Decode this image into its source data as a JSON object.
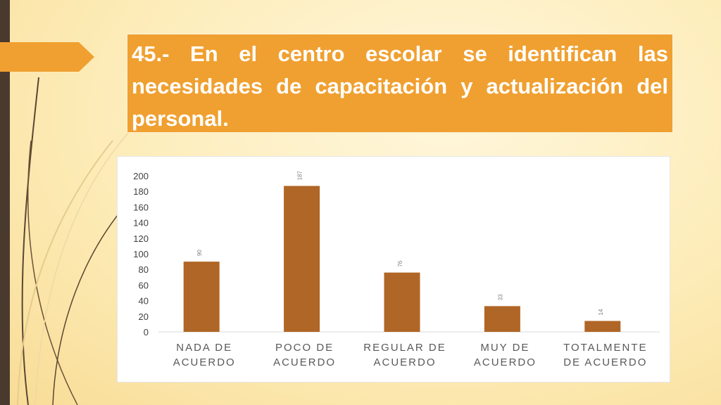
{
  "slide": {
    "title": "45.- En el centro escolar se identifican las necesidades de capacitación y actualización del personal."
  },
  "colors": {
    "title_bg": "#f0a030",
    "bar": "#b06626",
    "left_bar": "#4a3a2e"
  },
  "chart_data": {
    "type": "bar",
    "categories": [
      [
        "NADA DE",
        "ACUERDO"
      ],
      [
        "POCO DE",
        "ACUERDO"
      ],
      [
        "REGULAR DE",
        "ACUERDO"
      ],
      [
        "MUY DE",
        "ACUERDO"
      ],
      [
        "TOTALMENTE",
        "DE ACUERDO"
      ]
    ],
    "values": [
      90,
      187,
      76,
      33,
      14
    ],
    "ylim": [
      0,
      200
    ],
    "yticks": [
      0,
      20,
      40,
      60,
      80,
      100,
      120,
      140,
      160,
      180,
      200
    ],
    "data_labels": true,
    "grid": false,
    "legend": "none"
  }
}
